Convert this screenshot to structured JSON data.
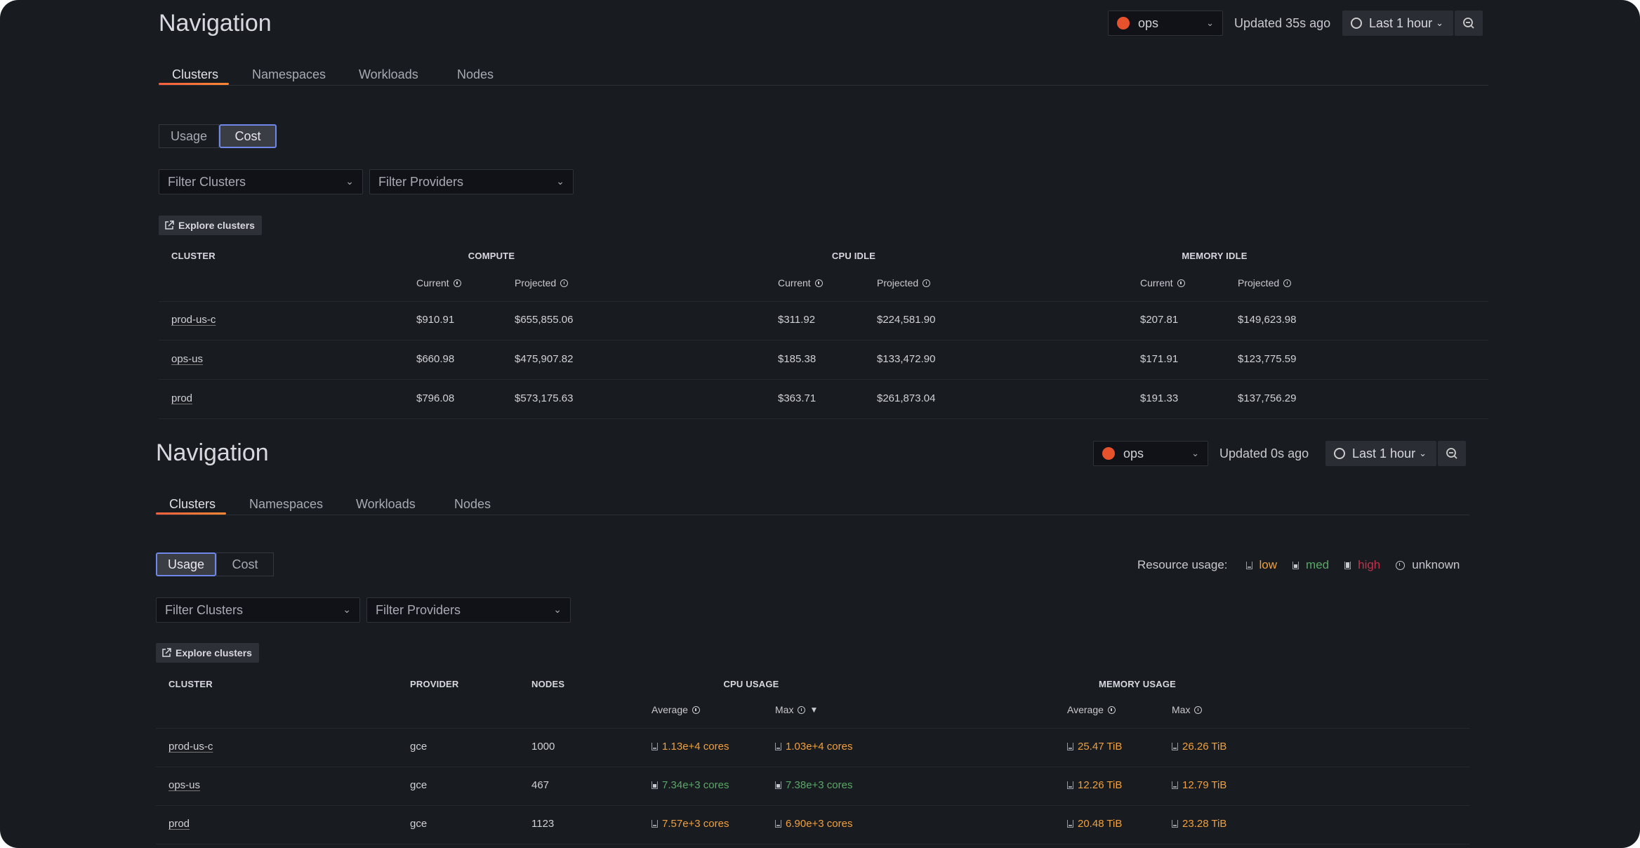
{
  "colors": {
    "accent": "#f55f3e",
    "low": "#f2a03d",
    "med": "#5aa867",
    "high": "#c4314b",
    "focus": "#6e87e8"
  },
  "panel_cost": {
    "title": "Navigation",
    "datasource": {
      "icon": "prometheus-icon",
      "label": "ops"
    },
    "updated": "Updated 35s ago",
    "time_picker": "Last 1 hour",
    "tabs": [
      "Clusters",
      "Namespaces",
      "Workloads",
      "Nodes"
    ],
    "active_tab": 0,
    "view_toggle": [
      "Usage",
      "Cost"
    ],
    "active_view": 1,
    "filters": [
      "Filter Clusters",
      "Filter Providers"
    ],
    "explore": "Explore clusters",
    "headers": {
      "cluster": "CLUSTER",
      "compute": "COMPUTE",
      "cpu_idle": "CPU IDLE",
      "memory_idle": "MEMORY IDLE",
      "current": "Current",
      "projected": "Projected"
    },
    "rows": [
      {
        "cluster": "prod-us-c",
        "compute_current": "$910.91",
        "compute_projected": "$655,855.06",
        "cpu_current": "$311.92",
        "cpu_projected": "$224,581.90",
        "mem_current": "$207.81",
        "mem_projected": "$149,623.98"
      },
      {
        "cluster": "ops-us",
        "compute_current": "$660.98",
        "compute_projected": "$475,907.82",
        "cpu_current": "$185.38",
        "cpu_projected": "$133,472.90",
        "mem_current": "$171.91",
        "mem_projected": "$123,775.59"
      },
      {
        "cluster": "prod",
        "compute_current": "$796.08",
        "compute_projected": "$573,175.63",
        "cpu_current": "$363.71",
        "cpu_projected": "$261,873.04",
        "mem_current": "$191.33",
        "mem_projected": "$137,756.29"
      }
    ]
  },
  "panel_usage": {
    "title": "Navigation",
    "datasource": {
      "icon": "prometheus-icon",
      "label": "ops"
    },
    "updated": "Updated 0s ago",
    "time_picker": "Last 1 hour",
    "tabs": [
      "Clusters",
      "Namespaces",
      "Workloads",
      "Nodes"
    ],
    "active_tab": 0,
    "view_toggle": [
      "Usage",
      "Cost"
    ],
    "active_view": 0,
    "legend": {
      "label": "Resource usage:",
      "items": [
        {
          "key": "low",
          "label": "low"
        },
        {
          "key": "med",
          "label": "med"
        },
        {
          "key": "high",
          "label": "high"
        },
        {
          "key": "unknown",
          "label": "unknown"
        }
      ]
    },
    "filters": [
      "Filter Clusters",
      "Filter Providers"
    ],
    "explore": "Explore clusters",
    "headers": {
      "cluster": "CLUSTER",
      "provider": "PROVIDER",
      "nodes": "NODES",
      "cpu": "CPU USAGE",
      "memory": "MEMORY USAGE",
      "average": "Average",
      "max": "Max",
      "sort": "▼"
    },
    "rows": [
      {
        "cluster": "prod-us-c",
        "provider": "gce",
        "nodes": "1000",
        "cpu_avg": {
          "v": "1.13e+4 cores",
          "level": "low"
        },
        "cpu_max": {
          "v": "1.03e+4 cores",
          "level": "low"
        },
        "mem_avg": {
          "v": "25.47 TiB",
          "level": "low"
        },
        "mem_max": {
          "v": "26.26 TiB",
          "level": "low"
        }
      },
      {
        "cluster": "ops-us",
        "provider": "gce",
        "nodes": "467",
        "cpu_avg": {
          "v": "7.34e+3 cores",
          "level": "med"
        },
        "cpu_max": {
          "v": "7.38e+3 cores",
          "level": "med"
        },
        "mem_avg": {
          "v": "12.26 TiB",
          "level": "low"
        },
        "mem_max": {
          "v": "12.79 TiB",
          "level": "low"
        }
      },
      {
        "cluster": "prod",
        "provider": "gce",
        "nodes": "1123",
        "cpu_avg": {
          "v": "7.57e+3 cores",
          "level": "low"
        },
        "cpu_max": {
          "v": "6.90e+3 cores",
          "level": "low"
        },
        "mem_avg": {
          "v": "20.48 TiB",
          "level": "low"
        },
        "mem_max": {
          "v": "23.28 TiB",
          "level": "low"
        }
      }
    ]
  }
}
